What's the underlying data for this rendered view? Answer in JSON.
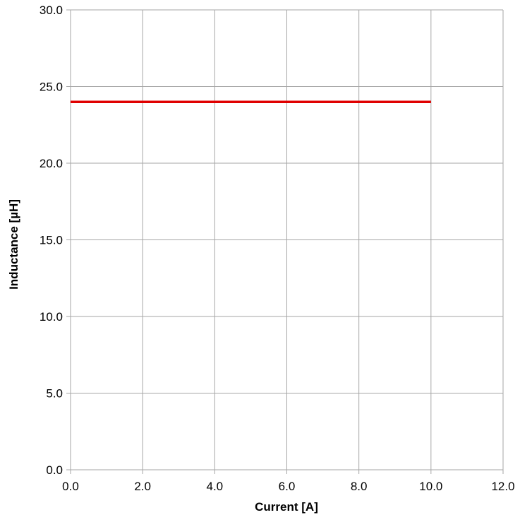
{
  "chart_data": {
    "type": "line",
    "title": "",
    "xlabel": "Current [A]",
    "ylabel": "Inductance [µH]",
    "xlim": [
      0,
      12
    ],
    "ylim": [
      0,
      30
    ],
    "x_ticks": [
      "0.0",
      "2.0",
      "4.0",
      "6.0",
      "8.0",
      "10.0",
      "12.0"
    ],
    "y_ticks": [
      "0.0",
      "5.0",
      "10.0",
      "15.0",
      "20.0",
      "25.0",
      "30.0"
    ],
    "grid": true,
    "legend": "none",
    "series": [
      {
        "color": "#e00000",
        "x": [
          0,
          10
        ],
        "y": [
          24,
          24
        ]
      }
    ]
  }
}
